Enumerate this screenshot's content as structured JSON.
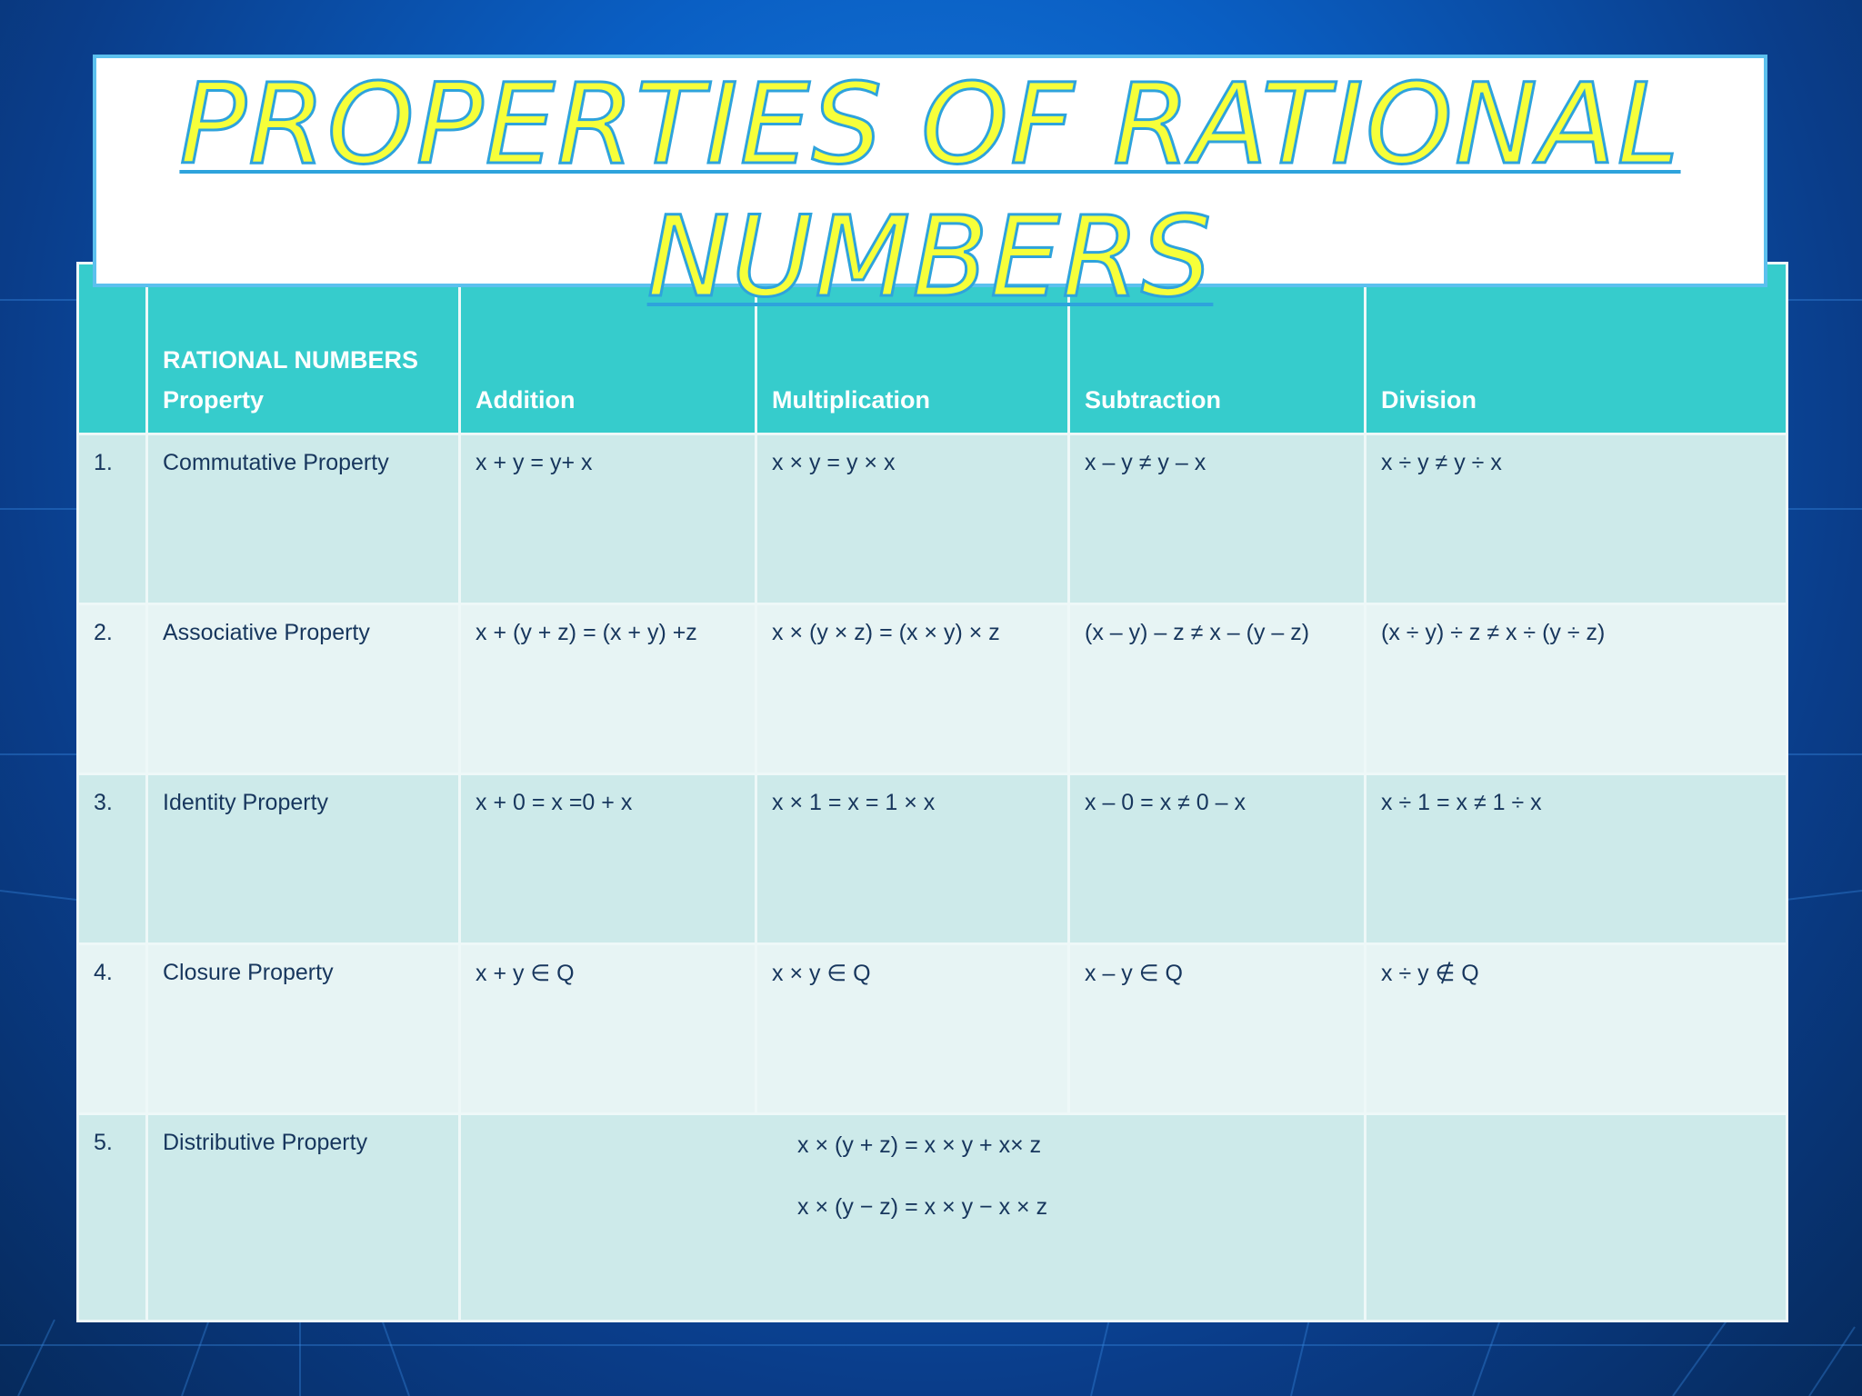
{
  "title": {
    "line1": "PROPERTIES OF RATIONAL",
    "line2": "NUMBERS"
  },
  "table": {
    "header": {
      "num": "",
      "property_line1": "RATIONAL NUMBERS",
      "property_line2": "Property",
      "addition": "Addition",
      "multiplication": "Multiplication",
      "subtraction": "Subtraction",
      "division": "Division"
    },
    "rows": [
      {
        "num": "1.",
        "property": "Commutative Property",
        "addition": "x + y = y+ x",
        "multiplication": "x × y = y × x",
        "subtraction": "x – y ≠ y – x",
        "division": "x ÷ y ≠ y ÷ x"
      },
      {
        "num": "2.",
        "property": "Associative Property",
        "addition": "x + (y + z) = (x + y) +z",
        "multiplication": "x × (y × z) = (x × y) × z",
        "subtraction": "(x – y) – z ≠ x – (y – z)",
        "division": "(x ÷ y) ÷ z ≠ x ÷ (y ÷ z)"
      },
      {
        "num": "3.",
        "property": "Identity Property",
        "addition": "x + 0 = x =0 + x",
        "multiplication": "x × 1 = x = 1 × x",
        "subtraction": "x – 0 = x ≠ 0 – x",
        "division": "x ÷ 1 = x ≠ 1 ÷ x"
      },
      {
        "num": "4.",
        "property": "Closure Property",
        "addition": "x + y ∈ Q",
        "multiplication": "x × y ∈ Q",
        "subtraction": "x – y ∈ Q",
        "division": "x ÷ y ∉ Q"
      }
    ],
    "distributive": {
      "num": "5.",
      "property": "Distributive Property",
      "line1": "x × (y + z) = x × y + x× z",
      "line2": "x × (y − z) = x × y − x × z",
      "division": ""
    }
  }
}
